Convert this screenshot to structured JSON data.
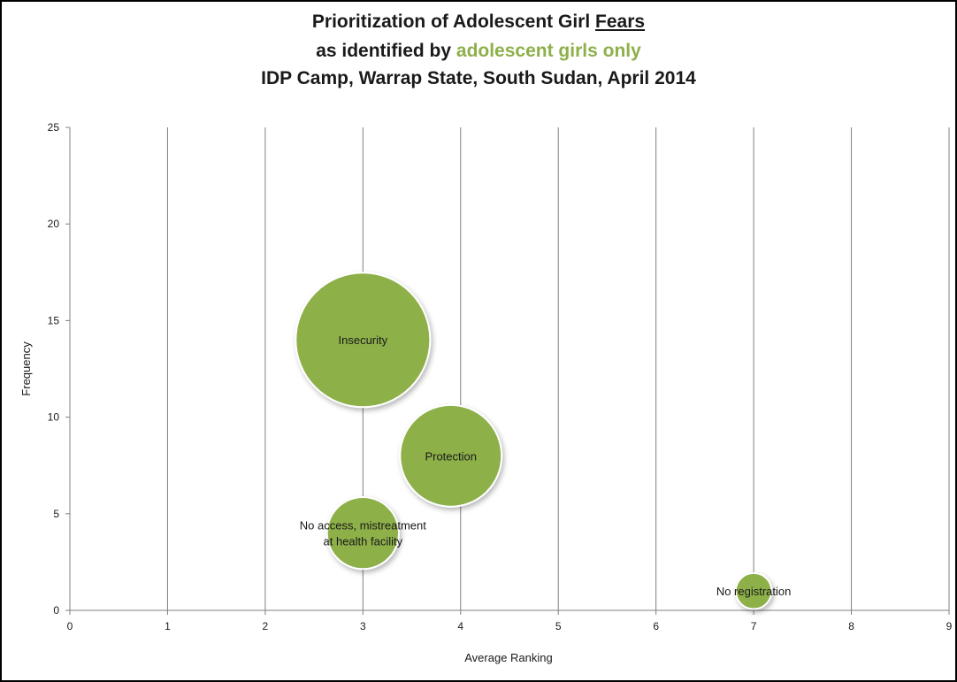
{
  "title": {
    "line1_pre": "Prioritization of Adolescent Girl ",
    "line1_underlined": "Fears",
    "line2_pre": "as identified by ",
    "line2_highlight": "adolescent girls only",
    "line3": "IDP Camp, Warrap State, South Sudan, April 2014"
  },
  "colors": {
    "bubble_fill": "#8db04a",
    "bubble_stroke": "#ffffff",
    "highlight_text": "#8db04a",
    "gridline": "#808080"
  },
  "chart_data": {
    "type": "scatter",
    "variant": "bubble",
    "xlabel": "Average Ranking",
    "ylabel": "Frequency",
    "xlim": [
      0,
      9
    ],
    "ylim": [
      0,
      25
    ],
    "x_ticks": [
      0,
      1,
      2,
      3,
      4,
      5,
      6,
      7,
      8,
      9
    ],
    "y_ticks": [
      0,
      5,
      10,
      15,
      20,
      25
    ],
    "grid": {
      "vertical": true,
      "horizontal": false
    },
    "legend": "none",
    "points": [
      {
        "label": "Insecurity",
        "label_lines": [
          "Insecurity"
        ],
        "x": 3.0,
        "y": 14,
        "size": 14
      },
      {
        "label": "Protection",
        "label_lines": [
          "Protection"
        ],
        "x": 3.9,
        "y": 8,
        "size": 8
      },
      {
        "label": "No access, mistreatment at health facility",
        "label_lines": [
          "No access,  mistreatment",
          "at health facility"
        ],
        "x": 3.0,
        "y": 4,
        "size": 4
      },
      {
        "label": "No registration",
        "label_lines": [
          "No registration"
        ],
        "x": 7.0,
        "y": 1,
        "size": 1
      }
    ]
  }
}
